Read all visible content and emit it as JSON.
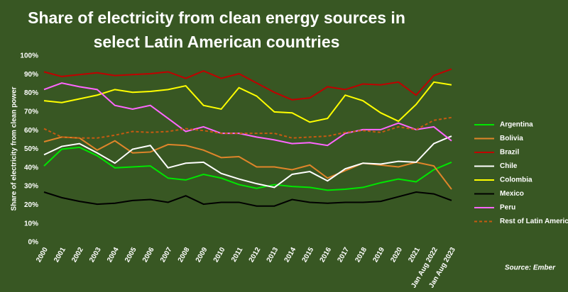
{
  "chart_data": {
    "type": "line",
    "title": "Share of electricity from clean energy sources in select Latin American countries",
    "y_label": "Share of electricity from clean power",
    "source": "Source: Ember",
    "categories": [
      "2000",
      "2001",
      "2002",
      "2003",
      "2004",
      "2005",
      "2006",
      "2007",
      "2008",
      "2009",
      "2010",
      "2011",
      "2012",
      "2013",
      "2014",
      "2015",
      "2016",
      "2017",
      "2018",
      "2019",
      "2020",
      "2021",
      "Jan Aug 2022",
      "Jan Aug 2023"
    ],
    "ylim": [
      0,
      100
    ],
    "yticks": [
      {
        "value": 0,
        "label": "0%"
      },
      {
        "value": 10,
        "label": "10%"
      },
      {
        "value": 20,
        "label": "20%"
      },
      {
        "value": 30,
        "label": "30%"
      },
      {
        "value": 40,
        "label": "40%"
      },
      {
        "value": 50,
        "label": "50%"
      },
      {
        "value": 60,
        "label": "60%"
      },
      {
        "value": 70,
        "label": "70%"
      },
      {
        "value": 80,
        "label": "80%"
      },
      {
        "value": 90,
        "label": "90%"
      },
      {
        "value": 100,
        "label": "100%"
      }
    ],
    "grid": false,
    "legend": "right",
    "series": [
      {
        "name": "Argentina",
        "color": "#00e600",
        "values": [
          41,
          50,
          51,
          46.5,
          40,
          40.5,
          41,
          34.5,
          33.5,
          36.5,
          34.5,
          31,
          29,
          31,
          30,
          29.5,
          28,
          28.5,
          29.5,
          32,
          34,
          32.5,
          39,
          43
        ]
      },
      {
        "name": "Bolivia",
        "color": "#e0852a",
        "values": [
          54,
          56.5,
          56,
          49.5,
          54.5,
          48,
          48.5,
          52.5,
          52,
          49.5,
          45.5,
          46,
          40.5,
          40.5,
          39,
          41.5,
          34.5,
          38.5,
          42.5,
          41.5,
          40.5,
          43,
          41,
          28.5
        ]
      },
      {
        "name": "Brazil",
        "color": "#c00000",
        "values": [
          91.5,
          89,
          90,
          91,
          89.5,
          90,
          90.5,
          91.5,
          88,
          92,
          88,
          90.5,
          85.5,
          80.5,
          76.5,
          77.5,
          83.5,
          82,
          85,
          84.5,
          86,
          79,
          89.5,
          93
        ]
      },
      {
        "name": "Chile",
        "color": "#ffffff",
        "values": [
          47,
          51.5,
          53,
          48,
          42.5,
          50,
          52,
          40,
          42.5,
          43,
          37,
          34,
          31.5,
          29.5,
          36.5,
          38,
          33,
          39.5,
          42.5,
          42,
          43.5,
          43,
          53,
          57
        ]
      },
      {
        "name": "Colombia",
        "color": "#ffff00",
        "values": [
          76,
          75,
          77,
          79,
          82,
          80.5,
          81,
          82,
          84,
          73.5,
          71.5,
          83,
          78.5,
          70,
          69.5,
          64.5,
          66.5,
          79,
          76,
          69.5,
          65,
          74,
          86,
          84.5
        ]
      },
      {
        "name": "Mexico",
        "color": "#000000",
        "values": [
          27,
          24,
          22,
          20.5,
          21,
          22.5,
          23,
          21.5,
          25,
          20.5,
          21.5,
          21.5,
          19.5,
          19.5,
          23,
          21.5,
          21,
          21.5,
          21.5,
          22,
          24.5,
          27,
          26,
          22.5
        ]
      },
      {
        "name": "Peru",
        "color": "#ff66ff",
        "values": [
          82,
          85.5,
          83.5,
          82,
          73.5,
          71.5,
          73.5,
          66.5,
          59.5,
          62,
          58.5,
          58.5,
          56.5,
          55,
          53,
          53.5,
          52,
          58.5,
          60.5,
          60.5,
          64,
          60.5,
          62,
          54.5
        ]
      },
      {
        "name": "Rest of Latin America",
        "color": "#c55a11",
        "dash": true,
        "values": [
          61,
          56.5,
          56,
          56,
          57.5,
          59.5,
          59,
          59.5,
          61,
          60,
          58.5,
          58.5,
          58.5,
          58.5,
          56,
          56.5,
          57,
          59,
          60,
          59,
          62,
          60.5,
          65.5,
          67
        ]
      }
    ]
  }
}
